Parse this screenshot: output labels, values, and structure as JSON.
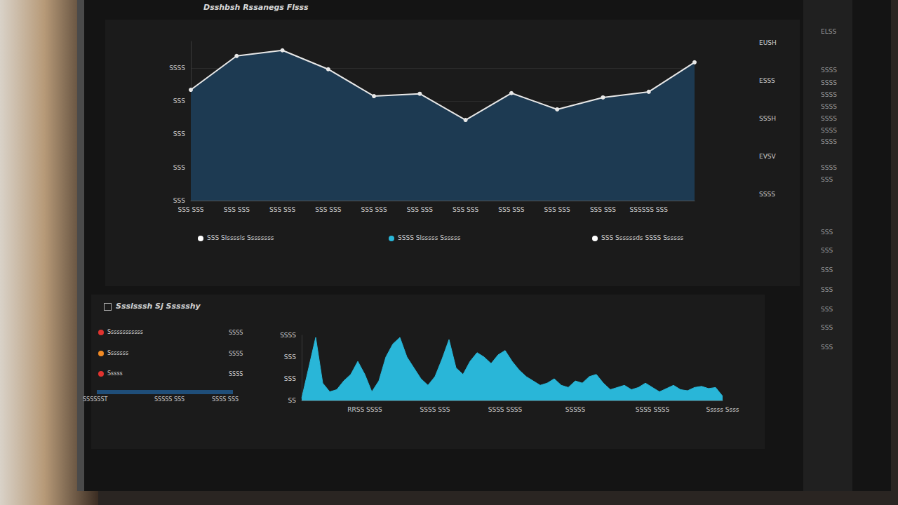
{
  "header": {
    "title": "Dsshbsh Rssanegs Flsss"
  },
  "right_rail": [
    "ELSS",
    "SSSS",
    "SSSS",
    "SSSS",
    "SSSS",
    "SSSS",
    "SSSS",
    "SSSS",
    "SSSS",
    "SSS",
    "SSS",
    "SSS",
    "SSS",
    "SSS",
    "SSS",
    "SSS",
    "SSS"
  ],
  "panel_top": {
    "right_labels": [
      "EUSH",
      "ESSS",
      "SSSH",
      "EVSV",
      "SSSS"
    ],
    "legend_items": [
      {
        "label": "SSS Slssssls Ssssssss",
        "color": "#ffffff"
      },
      {
        "label": "SSSS Slsssss Ssssss",
        "color": "#29b6d8"
      },
      {
        "label": "SSS Ssssssds SSSS Ssssss",
        "color": "#ffffff"
      }
    ]
  },
  "panel_bottom": {
    "title": "Ssslsssh Sj Ssssshy",
    "list": [
      {
        "label": "Ssssssssssss",
        "value": "SSSS",
        "color": "#e0332f"
      },
      {
        "label": "Sssssss",
        "value": "SSSS",
        "color": "#f08a24"
      },
      {
        "label": "Sssss",
        "value": "SSSS",
        "color": "#e0332f"
      }
    ],
    "bar_labels": [
      "SSSSSST",
      "SSSSS SSS",
      "SSSS SSS"
    ]
  },
  "chart_data": [
    {
      "type": "area",
      "color": "#1d3a52",
      "marker": "circle",
      "grid": true,
      "categories": [
        "SSS SSS",
        "SSS SSS",
        "SSS SSS",
        "SSS SSS",
        "SSS SSS",
        "SSS SSS",
        "SSS SSS",
        "SSS SSS",
        "SSS SSS",
        "SSS SSS",
        "SSSSSS SSS",
        null
      ],
      "values": [
        334,
        436,
        453,
        396,
        315,
        322,
        243,
        324,
        275,
        311,
        328,
        417
      ],
      "ylim": [
        0,
        480
      ],
      "yticks": [
        {
          "value": 0,
          "label": "SSS"
        },
        {
          "value": 100,
          "label": "SSS"
        },
        {
          "value": 200,
          "label": "SSS"
        },
        {
          "value": 300,
          "label": "SSS"
        },
        {
          "value": 400,
          "label": "SSSS"
        }
      ]
    },
    {
      "type": "area",
      "color": "#29b6d8",
      "marker": "none",
      "grid": false,
      "categories": [
        null,
        null,
        null,
        null,
        null,
        null,
        null,
        null,
        null,
        "RRSS SSSS",
        null,
        null,
        null,
        null,
        null,
        null,
        null,
        null,
        null,
        "SSSS SSS",
        null,
        null,
        null,
        null,
        null,
        null,
        null,
        null,
        null,
        "SSSS SSSS",
        null,
        null,
        null,
        null,
        null,
        null,
        null,
        null,
        null,
        "SSSSS",
        null,
        null,
        null,
        null,
        null,
        null,
        null,
        null,
        null,
        null,
        "SSSS SSSS",
        null,
        null,
        null,
        null,
        null,
        null,
        null,
        null,
        null,
        "Sssss Ssss"
      ],
      "values": [
        10,
        150,
        290,
        80,
        40,
        50,
        90,
        120,
        180,
        120,
        40,
        90,
        200,
        260,
        290,
        200,
        150,
        100,
        70,
        110,
        190,
        280,
        150,
        120,
        180,
        220,
        200,
        170,
        210,
        230,
        180,
        140,
        110,
        90,
        70,
        80,
        100,
        70,
        60,
        90,
        80,
        110,
        120,
        80,
        50,
        60,
        70,
        50,
        60,
        80,
        60,
        40,
        55,
        70,
        50,
        45,
        60,
        65,
        55,
        60,
        20
      ],
      "ylim": [
        0,
        300
      ],
      "yticks": [
        {
          "value": 0,
          "label": "SS"
        },
        {
          "value": 100,
          "label": "SSS"
        },
        {
          "value": 200,
          "label": "SSS"
        },
        {
          "value": 300,
          "label": "SSSS"
        }
      ]
    }
  ]
}
